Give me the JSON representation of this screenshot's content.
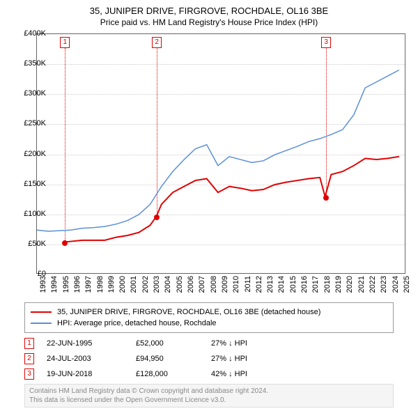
{
  "title": "35, JUNIPER DRIVE, FIRGROVE, ROCHDALE, OL16 3BE",
  "subtitle": "Price paid vs. HM Land Registry's House Price Index (HPI)",
  "chart": {
    "type": "line",
    "background_color": "#ffffff",
    "grid_color": "#cccccc",
    "border_color": "#666666",
    "x_years": [
      1993,
      1994,
      1995,
      1996,
      1997,
      1998,
      1999,
      2000,
      2001,
      2002,
      2003,
      2004,
      2005,
      2006,
      2007,
      2008,
      2009,
      2010,
      2011,
      2012,
      2013,
      2014,
      2015,
      2016,
      2017,
      2018,
      2019,
      2020,
      2021,
      2022,
      2023,
      2024,
      2025
    ],
    "x_min": 1993,
    "x_max": 2025.5,
    "y_min": 0,
    "y_max": 400000,
    "y_ticks": [
      0,
      50000,
      100000,
      150000,
      200000,
      250000,
      300000,
      350000,
      400000
    ],
    "y_tick_labels": [
      "£0",
      "£50K",
      "£100K",
      "£150K",
      "£200K",
      "£250K",
      "£300K",
      "£350K",
      "£400K"
    ],
    "series": [
      {
        "name": "property",
        "label": "35, JUNIPER DRIVE, FIRGROVE, ROCHDALE, OL16 3BE (detached house)",
        "color": "#e00000",
        "line_width": 2,
        "data": [
          [
            1995.47,
            52000
          ],
          [
            1996,
            53000
          ],
          [
            1997,
            55000
          ],
          [
            1998,
            55000
          ],
          [
            1999,
            55000
          ],
          [
            2000,
            60000
          ],
          [
            2001,
            63000
          ],
          [
            2002,
            68000
          ],
          [
            2003,
            80000
          ],
          [
            2003.56,
            94950
          ],
          [
            2004,
            115000
          ],
          [
            2005,
            135000
          ],
          [
            2006,
            145000
          ],
          [
            2007,
            155000
          ],
          [
            2008,
            158000
          ],
          [
            2009,
            135000
          ],
          [
            2010,
            145000
          ],
          [
            2011,
            142000
          ],
          [
            2012,
            138000
          ],
          [
            2013,
            140000
          ],
          [
            2014,
            148000
          ],
          [
            2015,
            152000
          ],
          [
            2016,
            155000
          ],
          [
            2017,
            158000
          ],
          [
            2018,
            160000
          ],
          [
            2018.46,
            128000
          ],
          [
            2019,
            165000
          ],
          [
            2020,
            170000
          ],
          [
            2021,
            180000
          ],
          [
            2022,
            192000
          ],
          [
            2023,
            190000
          ],
          [
            2024,
            192000
          ],
          [
            2025,
            195000
          ]
        ]
      },
      {
        "name": "hpi",
        "label": "HPI: Average price, detached house, Rochdale",
        "color": "#5b8fd6",
        "line_width": 1.5,
        "data": [
          [
            1993,
            72000
          ],
          [
            1994,
            70000
          ],
          [
            1995,
            71000
          ],
          [
            1996,
            72000
          ],
          [
            1997,
            75000
          ],
          [
            1998,
            76000
          ],
          [
            1999,
            78000
          ],
          [
            2000,
            82000
          ],
          [
            2001,
            88000
          ],
          [
            2002,
            98000
          ],
          [
            2003,
            115000
          ],
          [
            2004,
            145000
          ],
          [
            2005,
            170000
          ],
          [
            2006,
            190000
          ],
          [
            2007,
            208000
          ],
          [
            2008,
            215000
          ],
          [
            2009,
            180000
          ],
          [
            2010,
            195000
          ],
          [
            2011,
            190000
          ],
          [
            2012,
            185000
          ],
          [
            2013,
            188000
          ],
          [
            2014,
            198000
          ],
          [
            2015,
            205000
          ],
          [
            2016,
            212000
          ],
          [
            2017,
            220000
          ],
          [
            2018,
            225000
          ],
          [
            2019,
            232000
          ],
          [
            2020,
            240000
          ],
          [
            2021,
            265000
          ],
          [
            2022,
            310000
          ],
          [
            2023,
            320000
          ],
          [
            2024,
            330000
          ],
          [
            2025,
            340000
          ]
        ]
      }
    ],
    "markers": [
      {
        "id": "1",
        "year": 1995.47,
        "price": 52000
      },
      {
        "id": "2",
        "year": 2003.56,
        "price": 94950
      },
      {
        "id": "3",
        "year": 2018.46,
        "price": 128000
      }
    ]
  },
  "legend_items": [
    {
      "color": "#e00000",
      "label": "35, JUNIPER DRIVE, FIRGROVE, ROCHDALE, OL16 3BE (detached house)"
    },
    {
      "color": "#5b8fd6",
      "label": "HPI: Average price, detached house, Rochdale"
    }
  ],
  "events": [
    {
      "id": "1",
      "date": "22-JUN-1995",
      "price": "£52,000",
      "delta": "27% ↓ HPI"
    },
    {
      "id": "2",
      "date": "24-JUL-2003",
      "price": "£94,950",
      "delta": "27% ↓ HPI"
    },
    {
      "id": "3",
      "date": "19-JUN-2018",
      "price": "£128,000",
      "delta": "42% ↓ HPI"
    }
  ],
  "footer_line1": "Contains HM Land Registry data © Crown copyright and database right 2024.",
  "footer_line2": "This data is licensed under the Open Government Licence v3.0."
}
